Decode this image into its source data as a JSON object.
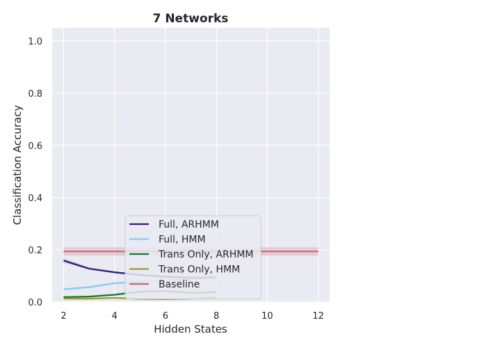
{
  "chart_data": {
    "type": "line",
    "title": "7 Networks",
    "xlabel": "Hidden States",
    "ylabel": "Classification Accuracy",
    "xlim": [
      1.55,
      12.45
    ],
    "ylim": [
      0.0,
      1.05
    ],
    "xticks": [
      2,
      4,
      6,
      8,
      10,
      12
    ],
    "xtick_labels": [
      "2",
      "4",
      "6",
      "8",
      "10",
      "12"
    ],
    "yticks": [
      0.0,
      0.2,
      0.4,
      0.6,
      0.8,
      1.0
    ],
    "ytick_labels": [
      "0.0",
      "0.2",
      "0.4",
      "0.6",
      "0.8",
      "1.0"
    ],
    "grid": true,
    "legend_position": "lower-center",
    "series": [
      {
        "name": "Full, ARHMM",
        "color": "#2a1f7a",
        "x": [
          2,
          3,
          4,
          5,
          6,
          7,
          8
        ],
        "y": [
          0.159,
          0.128,
          0.114,
          0.104,
          0.097,
          0.093,
          0.094
        ],
        "band": [
          0.007,
          0.004,
          0.004,
          0.004,
          0.004,
          0.004,
          0.004
        ]
      },
      {
        "name": "Full, HMM",
        "color": "#88ccee",
        "x": [
          2,
          3,
          4,
          5,
          6,
          7,
          8
        ],
        "y": [
          0.049,
          0.057,
          0.072,
          0.078,
          0.083,
          0.087,
          0.091
        ],
        "band": [
          0.004,
          0.004,
          0.004,
          0.004,
          0.004,
          0.004,
          0.004
        ]
      },
      {
        "name": "Trans Only, ARHMM",
        "color": "#117733",
        "x": [
          2,
          3,
          4,
          5,
          6,
          7,
          8
        ],
        "y": [
          0.019,
          0.021,
          0.028,
          0.04,
          0.042,
          0.035,
          0.038
        ],
        "band": [
          0.003,
          0.003,
          0.003,
          0.004,
          0.004,
          0.004,
          0.004
        ]
      },
      {
        "name": "Trans Only, HMM",
        "color": "#999933",
        "x": [
          2,
          3,
          4,
          5,
          6,
          7,
          8
        ],
        "y": [
          0.013,
          0.013,
          0.016,
          0.012,
          0.011,
          0.013,
          0.018
        ],
        "band": [
          0.002,
          0.002,
          0.002,
          0.002,
          0.002,
          0.002,
          0.002
        ]
      },
      {
        "name": "Baseline",
        "color": "#cc6677",
        "x": [
          2,
          12
        ],
        "y": [
          0.194,
          0.194
        ],
        "band": [
          0.016,
          0.016
        ]
      }
    ]
  }
}
